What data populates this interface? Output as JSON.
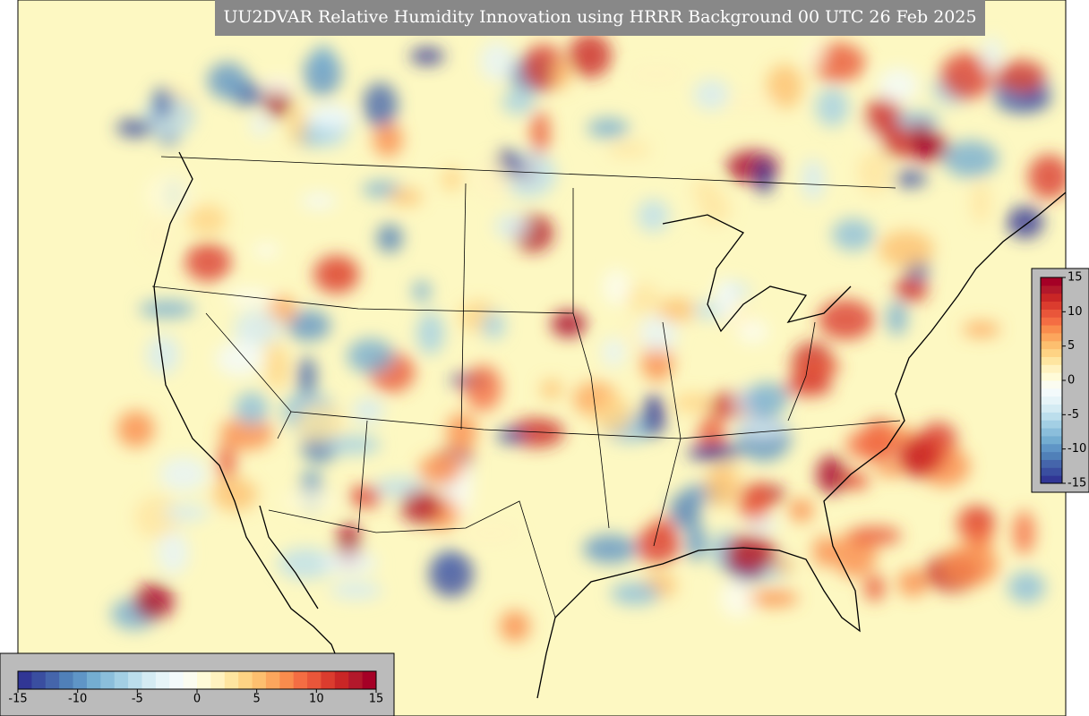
{
  "title": "UU2DVAR Relative Humidity Innovation using HRRR Background 00 UTC 26 Feb 2025",
  "colorbars": [
    {
      "orientation": "horizontal",
      "lim": [
        -15,
        15
      ],
      "ticks": [
        -15,
        -10,
        -5,
        0,
        5,
        10,
        15
      ],
      "colors": [
        "#313695",
        "#3a4ea0",
        "#4565ab",
        "#5080b8",
        "#5f95c6",
        "#74add1",
        "#8bbedb",
        "#a3cfe4",
        "#bcdeec",
        "#d4ebf3",
        "#e6f4f8",
        "#f3fafb",
        "#fbfcf0",
        "#fffbd8",
        "#fff2c0",
        "#fee5a0",
        "#fed384",
        "#fdbf6f",
        "#fca65d",
        "#f98c4d",
        "#f46d43",
        "#e9563a",
        "#db3c2e",
        "#c92626",
        "#b2182b",
        "#a50026"
      ]
    },
    {
      "orientation": "vertical",
      "lim": [
        -15,
        15
      ],
      "ticks": [
        -15,
        -10,
        -5,
        0,
        5,
        10,
        15
      ],
      "colors": [
        "#313695",
        "#3a4ea0",
        "#4565ab",
        "#5080b8",
        "#5f95c6",
        "#74add1",
        "#8bbedb",
        "#a3cfe4",
        "#bcdeec",
        "#d4ebf3",
        "#e6f4f8",
        "#f3fafb",
        "#fbfcf0",
        "#fffbd8",
        "#fff2c0",
        "#fee5a0",
        "#fed384",
        "#fdbf6f",
        "#fca65d",
        "#f98c4d",
        "#f46d43",
        "#e9563a",
        "#db3c2e",
        "#c92626",
        "#b2182b",
        "#a50026"
      ]
    }
  ]
}
